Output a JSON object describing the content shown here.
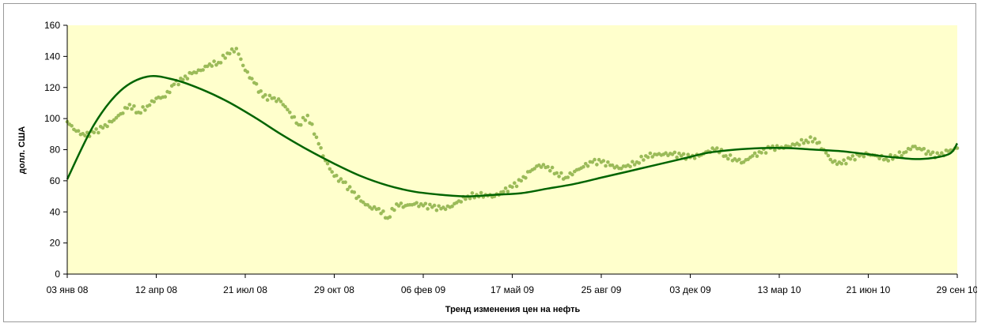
{
  "chart_data": {
    "type": "scatter",
    "title": "",
    "xlabel": "Тренд изменения цен на нефть",
    "ylabel": "долл. США",
    "ylim": [
      0,
      160
    ],
    "y_ticks": [
      0,
      20,
      40,
      60,
      80,
      100,
      120,
      140,
      160
    ],
    "x_range": [
      "2008-01-03",
      "2010-09-29"
    ],
    "x_ticks": [
      {
        "date": "2008-01-03",
        "label": "03 янв 08"
      },
      {
        "date": "2008-04-12",
        "label": "12 апр 08"
      },
      {
        "date": "2008-07-21",
        "label": "21 июл 08"
      },
      {
        "date": "2008-10-29",
        "label": "29 окт 08"
      },
      {
        "date": "2009-02-06",
        "label": "06 фев 09"
      },
      {
        "date": "2009-05-17",
        "label": "17 май 09"
      },
      {
        "date": "2009-08-25",
        "label": "25 авг 09"
      },
      {
        "date": "2009-12-03",
        "label": "03 дек 09"
      },
      {
        "date": "2010-03-13",
        "label": "13 мар 10"
      },
      {
        "date": "2010-06-21",
        "label": "21 июн 10"
      },
      {
        "date": "2010-09-29",
        "label": "29 сен 10"
      }
    ],
    "grid": false,
    "legend": "none",
    "colors": {
      "plot_background": "#ffffcc",
      "price_points": "#9bbb59",
      "trend_line": "#006400",
      "axis": "#000000"
    },
    "series": [
      {
        "kind": "points",
        "x": [
          "2008-01-03",
          "2008-01-13",
          "2008-01-23",
          "2008-02-02",
          "2008-02-12",
          "2008-02-22",
          "2008-03-03",
          "2008-03-13",
          "2008-03-23",
          "2008-04-02",
          "2008-04-12",
          "2008-04-22",
          "2008-05-02",
          "2008-05-12",
          "2008-05-22",
          "2008-06-01",
          "2008-06-11",
          "2008-06-21",
          "2008-07-01",
          "2008-07-11",
          "2008-07-21",
          "2008-07-31",
          "2008-08-10",
          "2008-08-20",
          "2008-08-30",
          "2008-09-09",
          "2008-09-19",
          "2008-09-29",
          "2008-10-09",
          "2008-10-19",
          "2008-10-29",
          "2008-11-08",
          "2008-11-18",
          "2008-11-28",
          "2008-12-08",
          "2008-12-18",
          "2008-12-28",
          "2009-01-07",
          "2009-01-17",
          "2009-01-27",
          "2009-02-06",
          "2009-02-16",
          "2009-02-26",
          "2009-03-08",
          "2009-03-18",
          "2009-03-28",
          "2009-04-07",
          "2009-04-17",
          "2009-04-27",
          "2009-05-07",
          "2009-05-17",
          "2009-05-27",
          "2009-06-06",
          "2009-06-16",
          "2009-06-26",
          "2009-07-06",
          "2009-07-16",
          "2009-07-26",
          "2009-08-05",
          "2009-08-15",
          "2009-08-25",
          "2009-09-04",
          "2009-09-14",
          "2009-09-24",
          "2009-10-04",
          "2009-10-14",
          "2009-10-24",
          "2009-11-03",
          "2009-11-13",
          "2009-11-23",
          "2009-12-03",
          "2009-12-13",
          "2009-12-23",
          "2010-01-02",
          "2010-01-12",
          "2010-01-22",
          "2010-02-01",
          "2010-02-11",
          "2010-02-21",
          "2010-03-03",
          "2010-03-13",
          "2010-03-23",
          "2010-04-02",
          "2010-04-12",
          "2010-04-22",
          "2010-05-02",
          "2010-05-12",
          "2010-05-22",
          "2010-06-01",
          "2010-06-11",
          "2010-06-21",
          "2010-07-01",
          "2010-07-11",
          "2010-07-21",
          "2010-07-31",
          "2010-08-10",
          "2010-08-20",
          "2010-08-30",
          "2010-09-09",
          "2010-09-19",
          "2010-09-29"
        ],
        "values": [
          98,
          92,
          89,
          91,
          94,
          98,
          103,
          109,
          104,
          108,
          113,
          114,
          122,
          125,
          129,
          131,
          135,
          136,
          142,
          145,
          131,
          123,
          114,
          113,
          111,
          104,
          96,
          102,
          88,
          73,
          63,
          59,
          53,
          47,
          43,
          42,
          36,
          45,
          44,
          45,
          44,
          43,
          42,
          43,
          47,
          50,
          51,
          51,
          50,
          53,
          56,
          60,
          66,
          70,
          69,
          65,
          62,
          66,
          69,
          72,
          72,
          70,
          68,
          70,
          72,
          76,
          77,
          77,
          77,
          76,
          75,
          76,
          79,
          81,
          76,
          74,
          72,
          76,
          78,
          81,
          81,
          82,
          84,
          86,
          87,
          80,
          72,
          71,
          74,
          76,
          77,
          76,
          74,
          76,
          78,
          82,
          80,
          77,
          76,
          79,
          81
        ]
      },
      {
        "kind": "trend",
        "x": [
          "2008-01-03",
          "2008-02-02",
          "2008-03-03",
          "2008-04-02",
          "2008-05-02",
          "2008-06-01",
          "2008-07-01",
          "2008-07-31",
          "2008-08-30",
          "2008-09-29",
          "2008-10-29",
          "2008-11-28",
          "2008-12-28",
          "2009-01-27",
          "2009-02-26",
          "2009-03-28",
          "2009-04-27",
          "2009-05-27",
          "2009-06-26",
          "2009-07-26",
          "2009-08-25",
          "2009-09-24",
          "2009-10-24",
          "2009-11-23",
          "2009-12-23",
          "2010-01-22",
          "2010-02-21",
          "2010-03-23",
          "2010-04-22",
          "2010-05-22",
          "2010-06-21",
          "2010-07-21",
          "2010-08-20",
          "2010-09-19",
          "2010-09-29"
        ],
        "values": [
          61,
          96,
          118,
          127,
          125,
          119,
          111,
          101,
          90,
          80,
          71,
          63,
          57,
          53,
          51,
          50,
          51,
          52,
          55,
          58,
          62,
          66,
          70,
          74,
          78,
          80,
          81,
          81,
          80,
          79,
          77,
          75,
          74,
          77,
          84
        ]
      }
    ]
  }
}
